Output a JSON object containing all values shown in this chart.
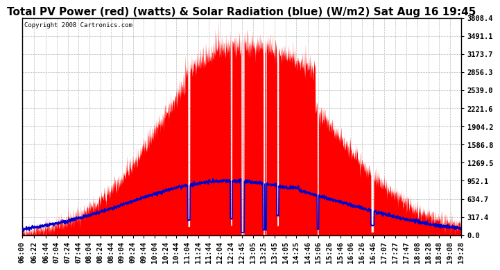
{
  "title": "Total PV Power (red) (watts) & Solar Radiation (blue) (W/m2) Sat Aug 16 19:45",
  "copyright": "Copyright 2008 Cartronics.com",
  "yticks": [
    0.0,
    317.4,
    634.7,
    952.1,
    1269.5,
    1586.8,
    1904.2,
    2221.6,
    2539.0,
    2856.3,
    3173.7,
    3491.1,
    3808.4
  ],
  "ymax": 3808.4,
  "xtick_labels": [
    "06:00",
    "06:22",
    "06:44",
    "07:04",
    "07:24",
    "07:44",
    "08:04",
    "08:24",
    "08:44",
    "09:04",
    "09:24",
    "09:44",
    "10:04",
    "10:24",
    "10:44",
    "11:04",
    "11:24",
    "11:44",
    "12:04",
    "12:24",
    "12:45",
    "13:05",
    "13:25",
    "13:45",
    "14:05",
    "14:25",
    "14:46",
    "15:06",
    "15:26",
    "15:46",
    "16:06",
    "16:26",
    "16:46",
    "17:07",
    "17:27",
    "17:47",
    "18:08",
    "18:28",
    "18:48",
    "19:08",
    "19:28"
  ],
  "bg_color": "#ffffff",
  "plot_bg_color": "#ffffff",
  "grid_color": "#aaaaaa",
  "red_color": "#ff0000",
  "blue_color": "#0000cc",
  "title_fontsize": 11,
  "tick_fontsize": 7.5,
  "copyright_fontsize": 6.5
}
